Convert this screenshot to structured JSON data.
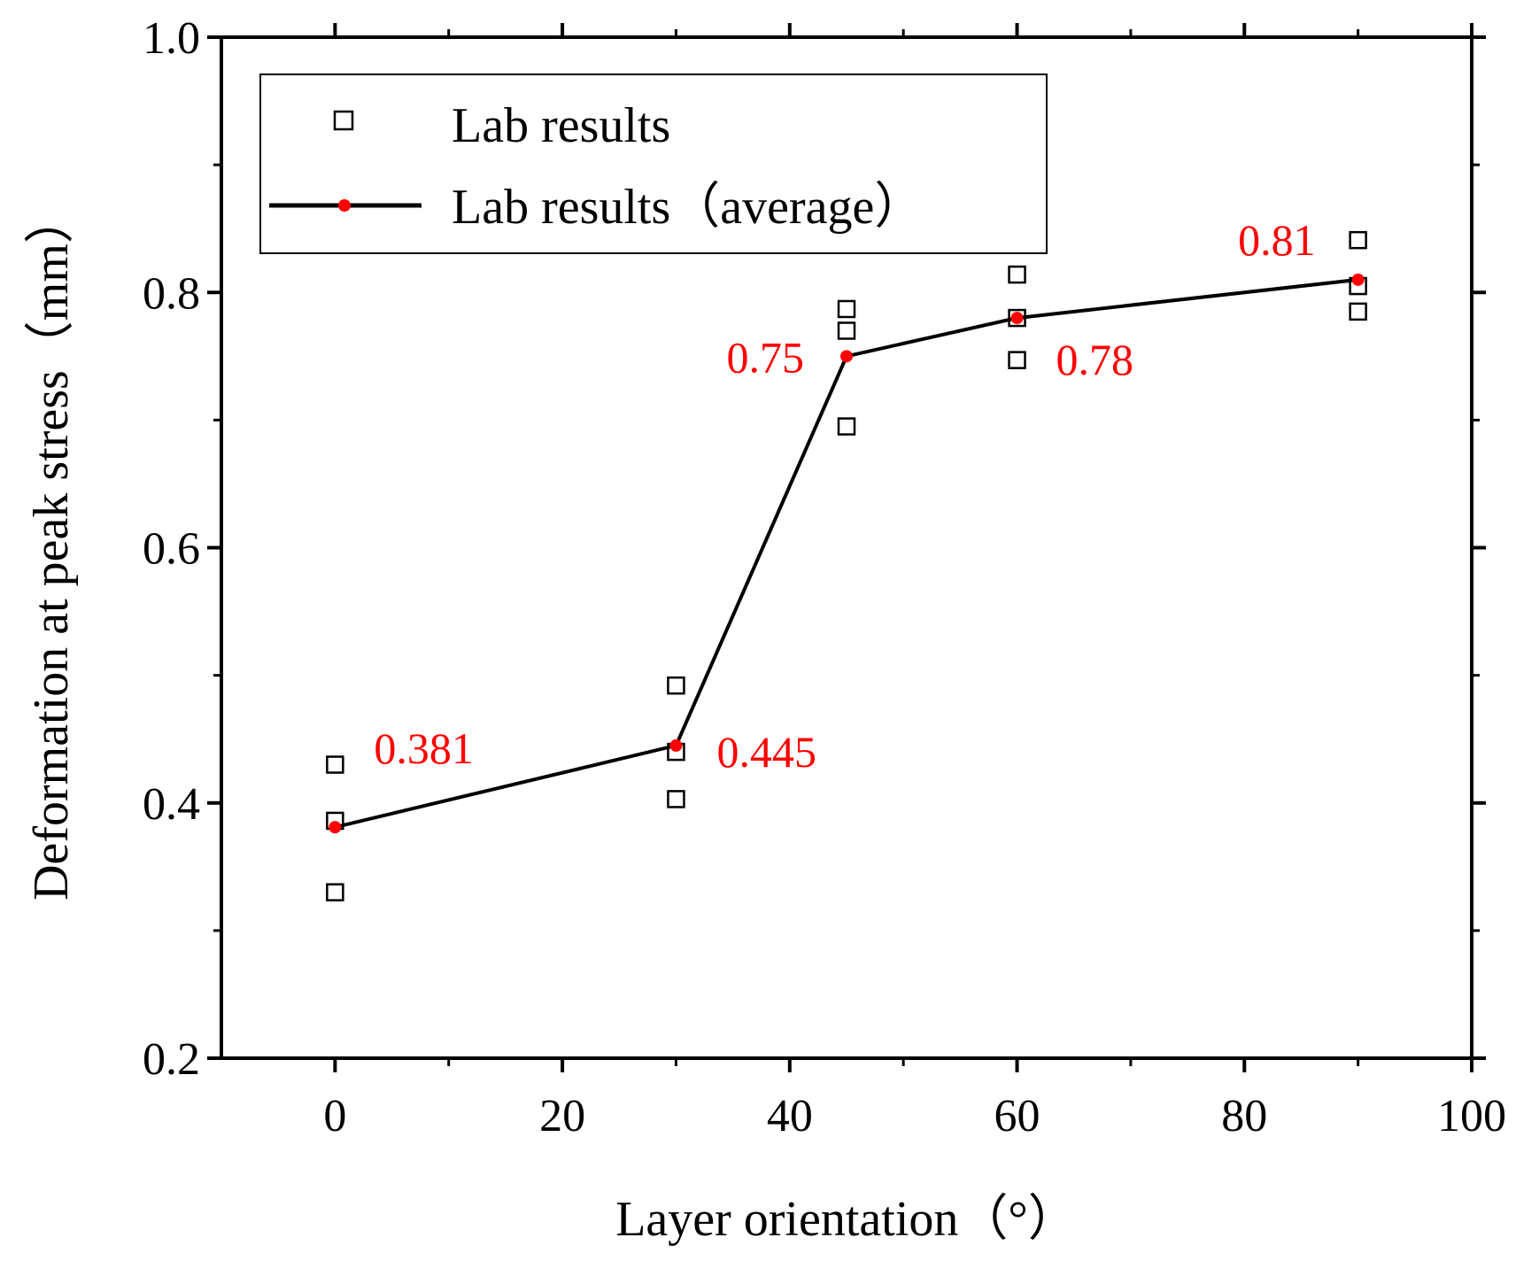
{
  "chart_data": {
    "type": "scatter",
    "xlabel": "Layer orientation（°）",
    "ylabel": "Deformation at peak stress（mm）",
    "xlim": [
      -10,
      100
    ],
    "ylim": [
      0.2,
      1.0
    ],
    "x_ticks": [
      0,
      20,
      40,
      60,
      80,
      100
    ],
    "x_tick_labels": [
      "0",
      "20",
      "40",
      "60",
      "80",
      "100"
    ],
    "y_ticks": [
      0.2,
      0.4,
      0.6,
      0.8,
      1.0
    ],
    "y_tick_labels": [
      "0.2",
      "0.4",
      "0.6",
      "0.8",
      "1.0"
    ],
    "legend": {
      "placement": "top-left",
      "entries": [
        "Lab results",
        "Lab results（average）"
      ]
    },
    "series": [
      {
        "name": "Lab results",
        "marker": "open-square",
        "points": [
          {
            "x": 0,
            "y": 0.43
          },
          {
            "x": 0,
            "y": 0.386
          },
          {
            "x": 0,
            "y": 0.33
          },
          {
            "x": 30,
            "y": 0.492
          },
          {
            "x": 30,
            "y": 0.44
          },
          {
            "x": 30,
            "y": 0.403
          },
          {
            "x": 45,
            "y": 0.787
          },
          {
            "x": 45,
            "y": 0.77
          },
          {
            "x": 45,
            "y": 0.695
          },
          {
            "x": 60,
            "y": 0.814
          },
          {
            "x": 60,
            "y": 0.78
          },
          {
            "x": 60,
            "y": 0.747
          },
          {
            "x": 90,
            "y": 0.841
          },
          {
            "x": 90,
            "y": 0.805
          },
          {
            "x": 90,
            "y": 0.785
          }
        ]
      },
      {
        "name": "Lab results（average）",
        "marker": "red-dot-line",
        "x": [
          0,
          30,
          45,
          60,
          90
        ],
        "y": [
          0.381,
          0.445,
          0.75,
          0.78,
          0.81
        ]
      }
    ],
    "annotations": [
      {
        "text": "0.381",
        "x": 0,
        "y": 0.381,
        "position": "upper-right"
      },
      {
        "text": "0.445",
        "x": 30,
        "y": 0.445,
        "position": "right"
      },
      {
        "text": "0.75",
        "x": 45,
        "y": 0.75,
        "position": "left"
      },
      {
        "text": "0.78",
        "x": 60,
        "y": 0.78,
        "position": "lower-right"
      },
      {
        "text": "0.81",
        "x": 90,
        "y": 0.81,
        "position": "upper-left"
      }
    ],
    "colors": {
      "axis": "#000000",
      "line": "#000000",
      "avg_marker": "#ff0000",
      "annotation": "#ff0000"
    }
  }
}
